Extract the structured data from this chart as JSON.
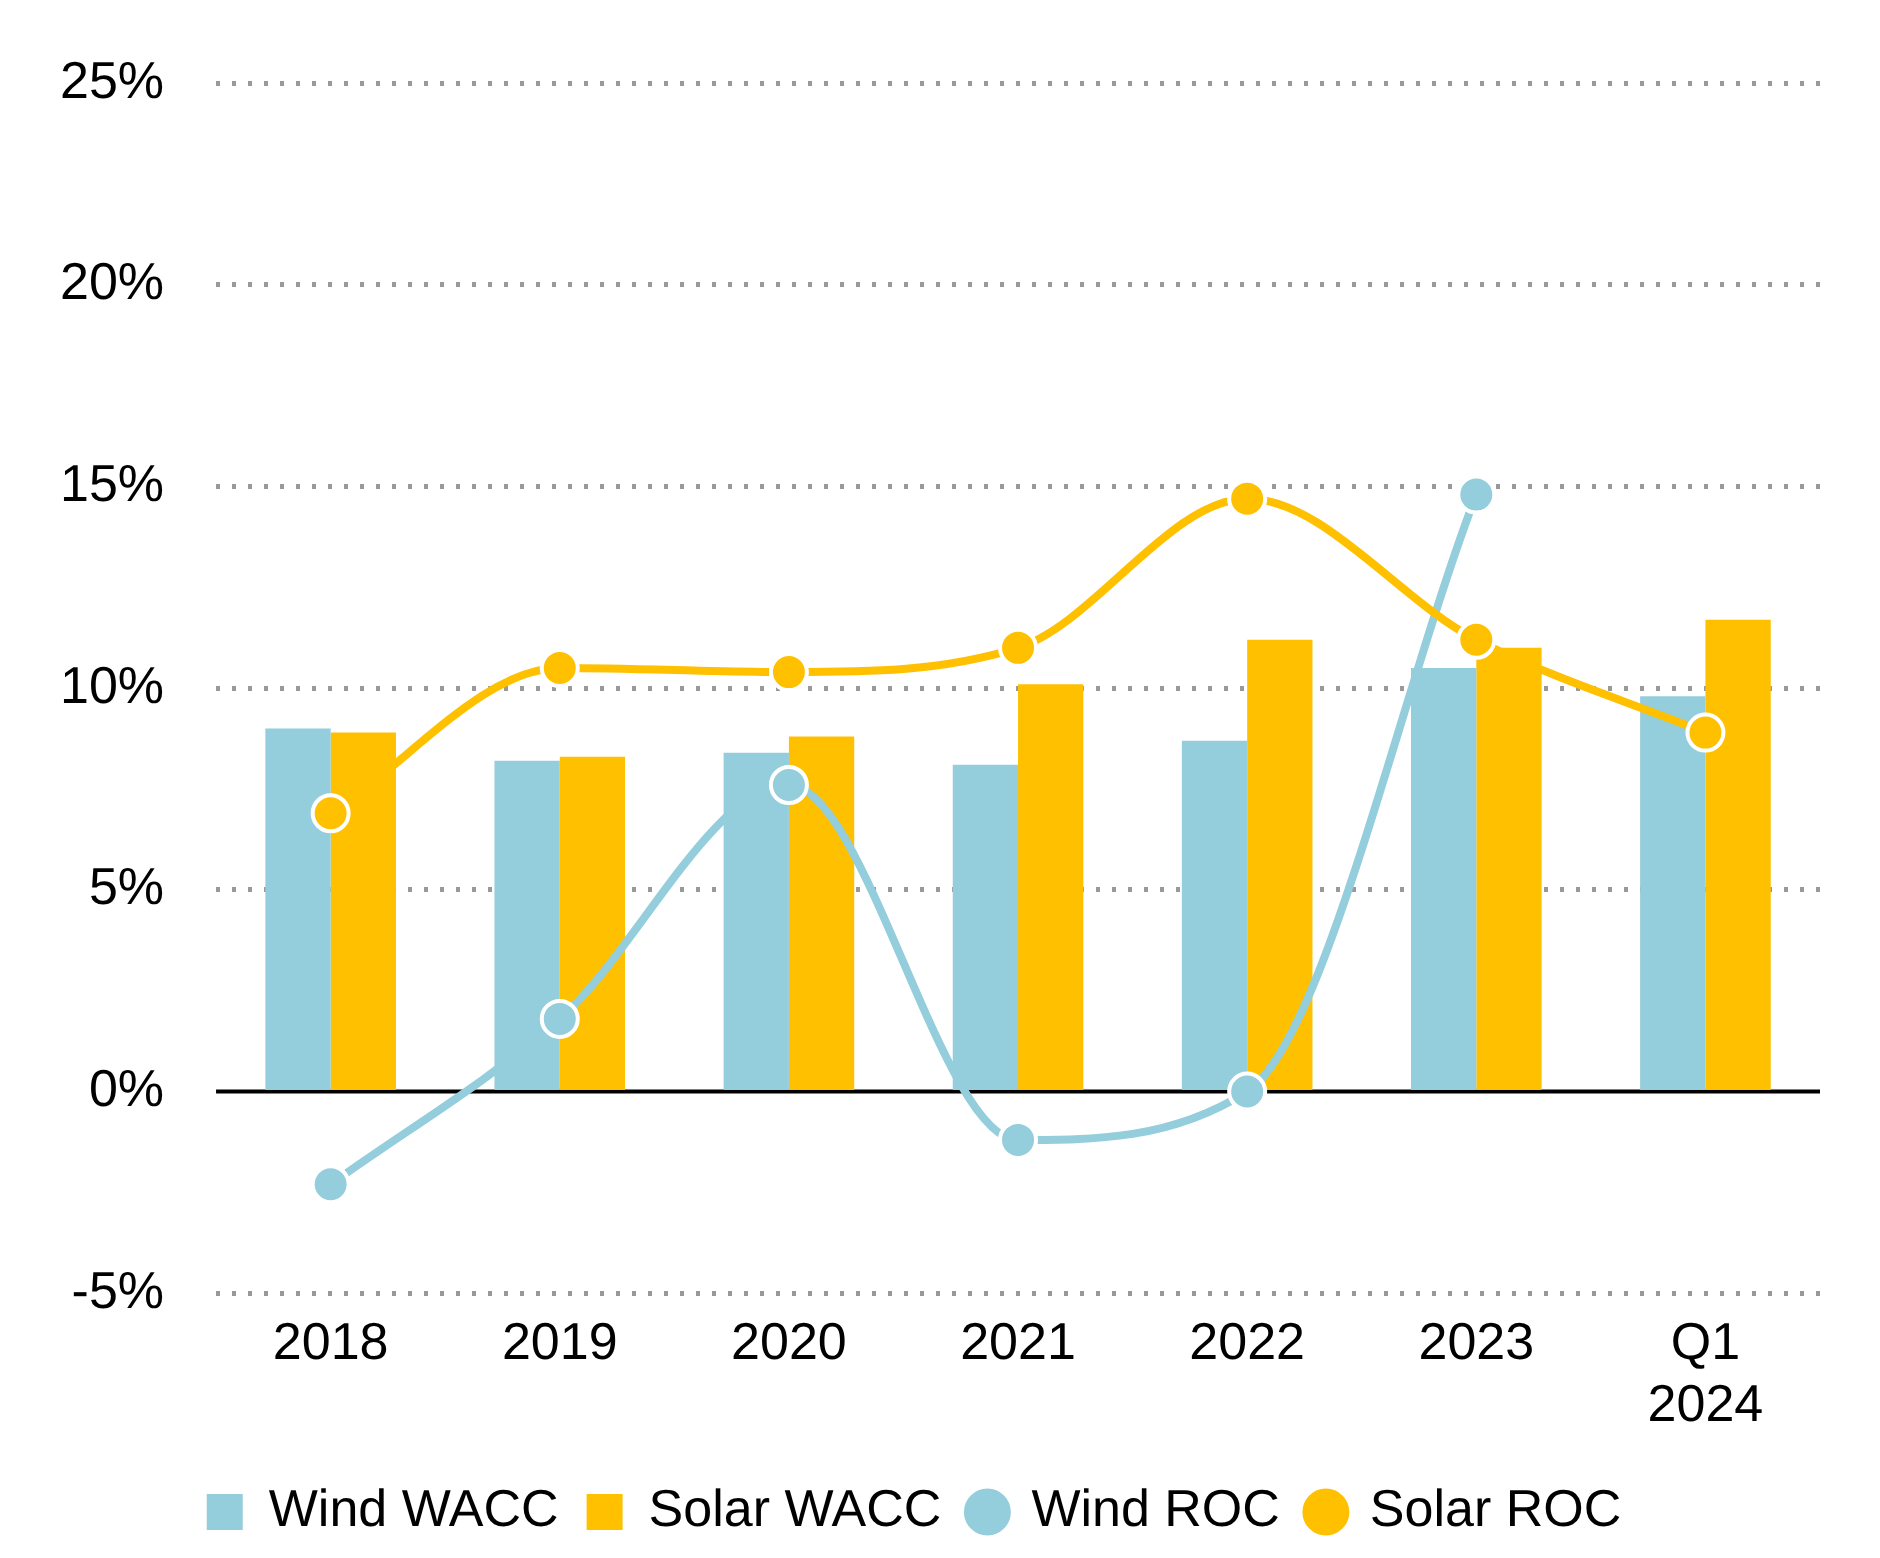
{
  "chart_data": {
    "type": "bar",
    "categories": [
      "2018",
      "2019",
      "2020",
      "2021",
      "2022",
      "2023",
      "Q1 2024"
    ],
    "series": [
      {
        "name": "Wind WACC",
        "color": "#94cddb",
        "values": [
          9.0,
          8.2,
          8.4,
          8.1,
          8.7,
          10.5,
          9.8
        ]
      },
      {
        "name": "Solar WACC",
        "color": "#ffc000",
        "values": [
          8.9,
          8.3,
          8.8,
          10.1,
          11.2,
          11.0,
          11.7
        ]
      },
      {
        "name": "Wind ROC",
        "type": "line",
        "color": "#94cddb",
        "values": [
          -2.3,
          1.8,
          7.6,
          -1.2,
          0,
          14.8,
          null
        ]
      },
      {
        "name": "Solar ROC",
        "type": "line",
        "color": "#ffc000",
        "values": [
          6.9,
          10.5,
          10.4,
          11.0,
          14.7,
          11.2,
          8.9
        ]
      }
    ],
    "ylim": [
      -5,
      25
    ],
    "yticks": [
      {
        "value": -5,
        "label": "-5%"
      },
      {
        "value": 0,
        "label": "0%"
      },
      {
        "value": 5,
        "label": "5%"
      },
      {
        "value": 10,
        "label": "10%"
      },
      {
        "value": 15,
        "label": "15%"
      },
      {
        "value": 20,
        "label": "20%"
      },
      {
        "value": 25,
        "label": "25%"
      }
    ],
    "ref_lines": [
      {
        "axis": "y",
        "value": 0,
        "color": "#000000"
      }
    ],
    "grid": "y",
    "legend": "bottom",
    "marker": "circle",
    "line_style": "solid"
  }
}
